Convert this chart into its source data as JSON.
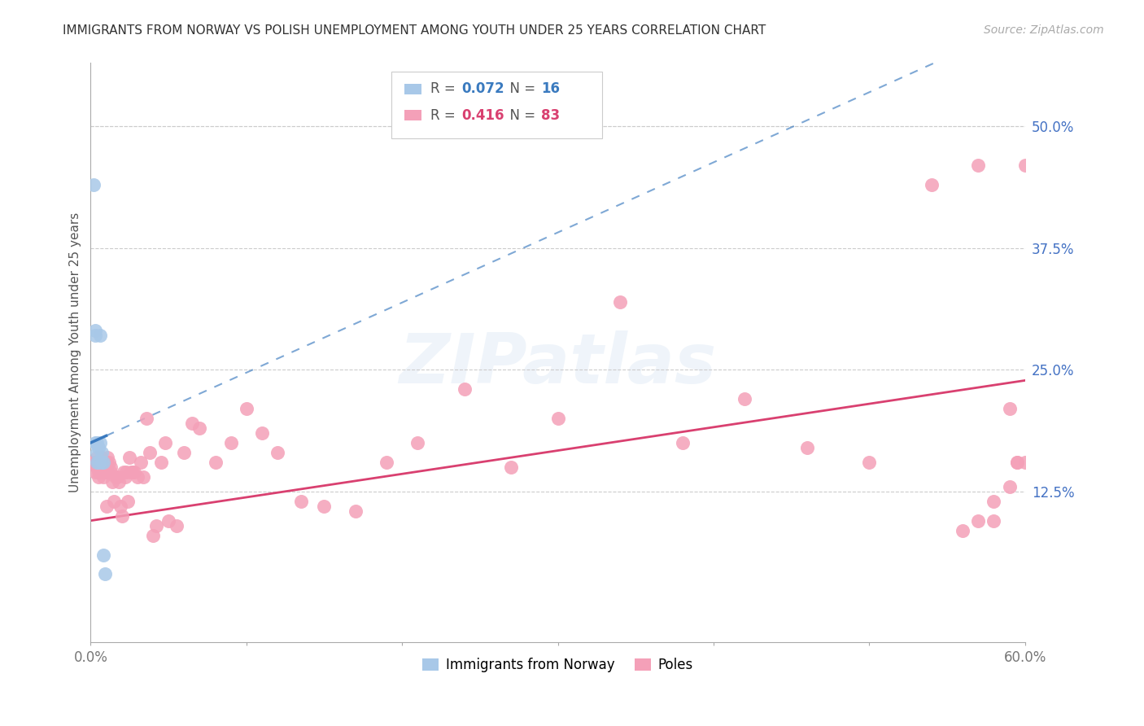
{
  "title": "IMMIGRANTS FROM NORWAY VS POLISH UNEMPLOYMENT AMONG YOUTH UNDER 25 YEARS CORRELATION CHART",
  "source": "Source: ZipAtlas.com",
  "ylabel": "Unemployment Among Youth under 25 years",
  "xlim": [
    0.0,
    0.6
  ],
  "ylim": [
    -0.03,
    0.565
  ],
  "yticks_right": [
    0.125,
    0.25,
    0.375,
    0.5
  ],
  "ytickslabels_right": [
    "12.5%",
    "25.0%",
    "37.5%",
    "50.0%"
  ],
  "legend_r1": "0.072",
  "legend_n1": "16",
  "legend_r2": "0.416",
  "legend_n2": "83",
  "legend_label1": "Immigrants from Norway",
  "legend_label2": "Poles",
  "background_color": "#ffffff",
  "grid_color": "#cccccc",
  "blue_scatter_color": "#a8c8e8",
  "pink_scatter_color": "#f4a0b8",
  "blue_line_color": "#3a7abf",
  "pink_line_color": "#d94070",
  "title_color": "#333333",
  "right_axis_color": "#4472c4",
  "blue_line_slope": 0.72,
  "blue_line_intercept": 0.175,
  "pink_line_slope": 0.24,
  "pink_line_intercept": 0.095,
  "norway_x": [
    0.002,
    0.003,
    0.003,
    0.003,
    0.004,
    0.004,
    0.004,
    0.005,
    0.005,
    0.006,
    0.006,
    0.007,
    0.007,
    0.008,
    0.008,
    0.009
  ],
  "norway_y": [
    0.44,
    0.29,
    0.285,
    0.175,
    0.175,
    0.165,
    0.155,
    0.17,
    0.155,
    0.285,
    0.175,
    0.165,
    0.155,
    0.155,
    0.06,
    0.04
  ],
  "poles_x": [
    0.002,
    0.003,
    0.003,
    0.004,
    0.004,
    0.005,
    0.005,
    0.005,
    0.006,
    0.006,
    0.007,
    0.007,
    0.008,
    0.008,
    0.008,
    0.009,
    0.009,
    0.01,
    0.01,
    0.011,
    0.011,
    0.012,
    0.013,
    0.013,
    0.014,
    0.015,
    0.016,
    0.017,
    0.018,
    0.019,
    0.02,
    0.021,
    0.022,
    0.023,
    0.024,
    0.025,
    0.026,
    0.027,
    0.028,
    0.03,
    0.032,
    0.034,
    0.036,
    0.038,
    0.04,
    0.042,
    0.045,
    0.048,
    0.05,
    0.055,
    0.06,
    0.065,
    0.07,
    0.08,
    0.09,
    0.1,
    0.11,
    0.12,
    0.135,
    0.15,
    0.17,
    0.19,
    0.21,
    0.24,
    0.27,
    0.3,
    0.34,
    0.38,
    0.42,
    0.46,
    0.5,
    0.54,
    0.57,
    0.58,
    0.59,
    0.595,
    0.6,
    0.6,
    0.595,
    0.59,
    0.58,
    0.57,
    0.56
  ],
  "poles_y": [
    0.155,
    0.155,
    0.145,
    0.16,
    0.15,
    0.155,
    0.145,
    0.14,
    0.155,
    0.145,
    0.16,
    0.15,
    0.155,
    0.145,
    0.14,
    0.155,
    0.145,
    0.11,
    0.155,
    0.16,
    0.145,
    0.155,
    0.15,
    0.145,
    0.135,
    0.115,
    0.14,
    0.14,
    0.135,
    0.11,
    0.1,
    0.145,
    0.14,
    0.145,
    0.115,
    0.16,
    0.145,
    0.145,
    0.145,
    0.14,
    0.155,
    0.14,
    0.2,
    0.165,
    0.08,
    0.09,
    0.155,
    0.175,
    0.095,
    0.09,
    0.165,
    0.195,
    0.19,
    0.155,
    0.175,
    0.21,
    0.185,
    0.165,
    0.115,
    0.11,
    0.105,
    0.155,
    0.175,
    0.23,
    0.15,
    0.2,
    0.32,
    0.175,
    0.22,
    0.17,
    0.155,
    0.44,
    0.46,
    0.095,
    0.21,
    0.155,
    0.155,
    0.46,
    0.155,
    0.13,
    0.115,
    0.095,
    0.085
  ]
}
